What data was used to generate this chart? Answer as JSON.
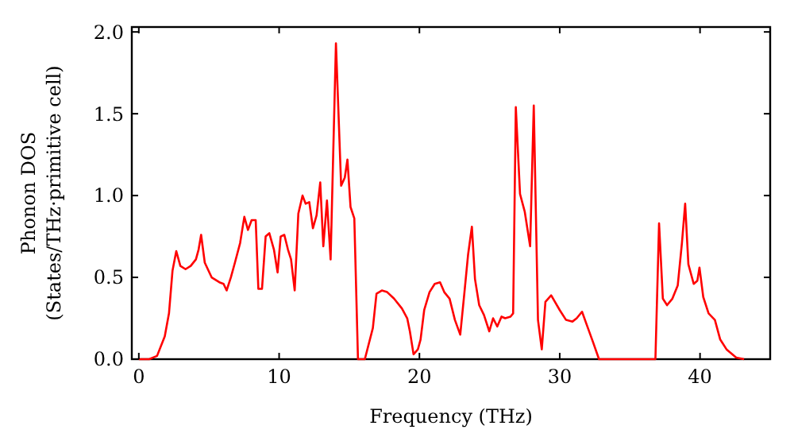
{
  "chart_data": {
    "type": "line",
    "xlabel": "Frequency (THz)",
    "ylabel": "Phonon DOS\n(States/THz·primitive cell)",
    "xlim": [
      -0.5,
      45
    ],
    "ylim": [
      0,
      2.03
    ],
    "xticks": [
      0,
      10,
      20,
      30,
      40
    ],
    "yticks": [
      {
        "value": 0,
        "label": "0.0"
      },
      {
        "value": 0.5,
        "label": "0.5"
      },
      {
        "value": 1,
        "label": "1.0"
      },
      {
        "value": 1.5,
        "label": "1.5"
      },
      {
        "value": 2,
        "label": "2.0"
      }
    ],
    "grid": false,
    "marker": "none",
    "line_style": "solid",
    "series": [
      {
        "color": "#ff0000",
        "x": [
          0,
          0.74,
          1.3,
          1.85,
          2.15,
          2.4,
          2.67,
          2.96,
          3.33,
          3.7,
          4.07,
          4.26,
          4.44,
          4.7,
          5.19,
          5.74,
          6.04,
          6.26,
          6.56,
          6.85,
          7.22,
          7.52,
          7.78,
          8.04,
          8.33,
          8.52,
          8.78,
          9.04,
          9.3,
          9.63,
          9.89,
          10.11,
          10.37,
          10.63,
          10.85,
          11.11,
          11.37,
          11.67,
          11.89,
          12.15,
          12.41,
          12.67,
          12.93,
          13.15,
          13.41,
          13.67,
          14.05,
          14.42,
          14.68,
          14.87,
          15.09,
          15.36,
          15.62,
          16.11,
          16.68,
          16.94,
          17.32,
          17.7,
          18.19,
          18.75,
          19.13,
          19.32,
          19.58,
          19.89,
          20.08,
          20.34,
          20.72,
          21.09,
          21.47,
          21.77,
          22.15,
          22.53,
          22.91,
          23.21,
          23.47,
          23.74,
          23.96,
          24.26,
          24.6,
          24.98,
          25.25,
          25.55,
          25.85,
          26.11,
          26.49,
          26.68,
          26.87,
          27.17,
          27.51,
          27.89,
          28.15,
          28.45,
          28.72,
          28.98,
          29.39,
          30,
          30.45,
          30.91,
          31.21,
          31.59,
          31.97,
          32.35,
          32.8,
          36.82,
          37.08,
          37.35,
          37.65,
          38.03,
          38.41,
          38.71,
          38.94,
          39.17,
          39.55,
          39.81,
          39.96,
          40.23,
          40.61,
          41.06,
          41.44,
          41.89,
          42.58,
          43.14
        ],
        "values": [
          0,
          0,
          0.02,
          0.14,
          0.28,
          0.54,
          0.66,
          0.57,
          0.55,
          0.57,
          0.61,
          0.67,
          0.76,
          0.59,
          0.5,
          0.47,
          0.46,
          0.42,
          0.5,
          0.59,
          0.71,
          0.87,
          0.79,
          0.85,
          0.85,
          0.43,
          0.43,
          0.75,
          0.77,
          0.67,
          0.53,
          0.75,
          0.76,
          0.67,
          0.61,
          0.42,
          0.89,
          1.0,
          0.95,
          0.96,
          0.8,
          0.88,
          1.08,
          0.69,
          0.97,
          0.61,
          1.93,
          1.06,
          1.11,
          1.22,
          0.93,
          0.86,
          0,
          0,
          0.19,
          0.4,
          0.42,
          0.41,
          0.37,
          0.31,
          0.25,
          0.17,
          0.03,
          0.06,
          0.12,
          0.3,
          0.41,
          0.46,
          0.47,
          0.41,
          0.37,
          0.24,
          0.15,
          0.41,
          0.64,
          0.81,
          0.49,
          0.33,
          0.27,
          0.17,
          0.25,
          0.2,
          0.26,
          0.25,
          0.26,
          0.28,
          1.54,
          1.01,
          0.9,
          0.69,
          1.55,
          0.24,
          0.06,
          0.35,
          0.39,
          0.3,
          0.24,
          0.23,
          0.25,
          0.29,
          0.2,
          0.11,
          0,
          0,
          0.83,
          0.37,
          0.33,
          0.37,
          0.45,
          0.71,
          0.95,
          0.58,
          0.46,
          0.48,
          0.56,
          0.38,
          0.28,
          0.24,
          0.12,
          0.06,
          0.01,
          0
        ]
      }
    ]
  }
}
